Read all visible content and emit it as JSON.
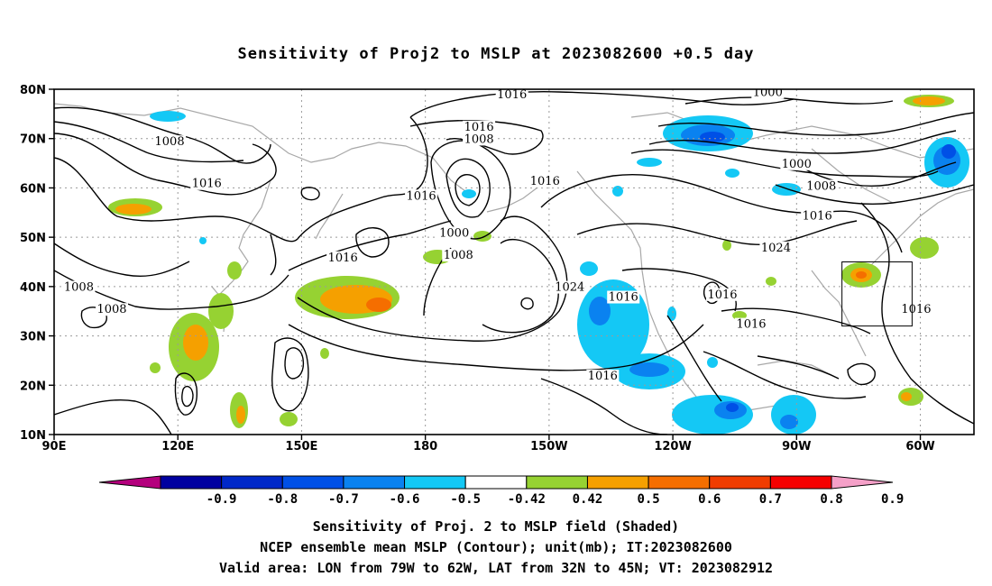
{
  "title": "Sensitivity of Proj2 to MSLP at 2023082600 +0.5 day",
  "map": {
    "lat_labels": [
      "80N",
      "70N",
      "60N",
      "50N",
      "40N",
      "30N",
      "20N",
      "10N"
    ],
    "lat_values": [
      80,
      70,
      60,
      50,
      40,
      30,
      20,
      10
    ],
    "lon_labels": [
      "90E",
      "120E",
      "150E",
      "180",
      "150W",
      "120W",
      "90W",
      "60W"
    ],
    "lon_values": [
      90,
      120,
      150,
      180,
      210,
      240,
      270,
      300
    ],
    "lon_range": [
      90,
      313
    ],
    "lat_range": [
      10,
      80
    ],
    "valid_box": {
      "lon": [
        281,
        298
      ],
      "lat": [
        32,
        45
      ]
    },
    "contour_labels": [
      {
        "text": "1016",
        "lon": 201,
        "lat": 78.5
      },
      {
        "text": "1000",
        "lon": 263,
        "lat": 79
      },
      {
        "text": "1016",
        "lon": 193,
        "lat": 72
      },
      {
        "text": "1008",
        "lon": 193,
        "lat": 69.5
      },
      {
        "text": "1008",
        "lon": 118,
        "lat": 69
      },
      {
        "text": "1000",
        "lon": 270,
        "lat": 64.5
      },
      {
        "text": "1008",
        "lon": 276,
        "lat": 60
      },
      {
        "text": "1016",
        "lon": 127,
        "lat": 60.5
      },
      {
        "text": "1016",
        "lon": 179,
        "lat": 58
      },
      {
        "text": "1016",
        "lon": 209,
        "lat": 61
      },
      {
        "text": "1016",
        "lon": 275,
        "lat": 54
      },
      {
        "text": "1000",
        "lon": 187,
        "lat": 50.5
      },
      {
        "text": "1024",
        "lon": 265,
        "lat": 47.5
      },
      {
        "text": "1008",
        "lon": 188,
        "lat": 46
      },
      {
        "text": "1016",
        "lon": 160,
        "lat": 45.5
      },
      {
        "text": "1008",
        "lon": 96,
        "lat": 39.5
      },
      {
        "text": "1024",
        "lon": 215,
        "lat": 39.5
      },
      {
        "text": "1016",
        "lon": 228,
        "lat": 37.5
      },
      {
        "text": "1016",
        "lon": 252,
        "lat": 38
      },
      {
        "text": "1008",
        "lon": 104,
        "lat": 35
      },
      {
        "text": "1016",
        "lon": 299,
        "lat": 35
      },
      {
        "text": "1016",
        "lon": 259,
        "lat": 32
      },
      {
        "text": "1016",
        "lon": 223,
        "lat": 21.5
      }
    ]
  },
  "colorbar": {
    "labels": [
      "-0.9",
      "-0.8",
      "-0.7",
      "-0.6",
      "-0.5",
      "-0.42",
      "0.42",
      "0.5",
      "0.6",
      "0.7",
      "0.8",
      "0.9"
    ],
    "colors": [
      "#b4007d",
      "#0000a0",
      "#0028c8",
      "#0050e6",
      "#0a82f0",
      "#14c8f5",
      "#ffffff",
      "#96d232",
      "#f5a000",
      "#f56e00",
      "#f03c00",
      "#f50000",
      "#f5a0c8"
    ]
  },
  "captions": {
    "line1": "Sensitivity of Proj. 2 to MSLP field (Shaded)",
    "line2": "NCEP ensemble mean MSLP (Contour); unit(mb); IT:2023082600",
    "line3": "Valid area: LON from 79W to 62W, LAT from 32N to 45N; VT: 2023082912"
  }
}
